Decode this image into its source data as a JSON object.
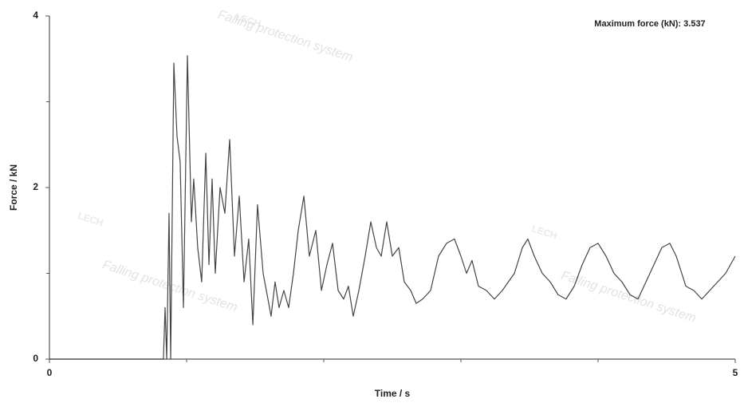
{
  "chart_data": {
    "type": "line",
    "annotation": "Maximum force (kN): 3.537",
    "xlabel": "Time / s",
    "ylabel": "Force / kN",
    "watermarks": [
      "LECH",
      "Falling protection system"
    ],
    "xlim": [
      0,
      5
    ],
    "ylim": [
      0,
      4
    ],
    "xticks": [
      0,
      5
    ],
    "yticks": [
      0,
      2,
      4
    ],
    "xminorticks": [
      1,
      2,
      3,
      4
    ],
    "yminorticks": [
      1,
      3
    ],
    "x": [
      0,
      0.802,
      0.831,
      0.843,
      0.855,
      0.872,
      0.884,
      0.907,
      0.93,
      0.953,
      0.977,
      1.006,
      1.035,
      1.052,
      1.081,
      1.11,
      1.14,
      1.163,
      1.186,
      1.209,
      1.244,
      1.279,
      1.314,
      1.349,
      1.384,
      1.419,
      1.453,
      1.483,
      1.517,
      1.558,
      1.593,
      1.616,
      1.645,
      1.674,
      1.709,
      1.744,
      1.779,
      1.814,
      1.855,
      1.895,
      1.942,
      1.983,
      2.023,
      2.064,
      2.105,
      2.145,
      2.18,
      2.215,
      2.256,
      2.302,
      2.343,
      2.384,
      2.419,
      2.459,
      2.5,
      2.547,
      2.587,
      2.634,
      2.674,
      2.721,
      2.779,
      2.837,
      2.895,
      2.953,
      3.0,
      3.041,
      3.081,
      3.128,
      3.186,
      3.244,
      3.302,
      3.39,
      3.448,
      3.488,
      3.535,
      3.593,
      3.651,
      3.709,
      3.767,
      3.826,
      3.884,
      3.942,
      4.0,
      4.058,
      4.116,
      4.174,
      4.233,
      4.291,
      4.378,
      4.465,
      4.523,
      4.57,
      4.64,
      4.698,
      4.756,
      4.843,
      4.93,
      5.0
    ],
    "series": [
      {
        "name": "Force",
        "color": "#444444",
        "values": [
          0,
          0,
          0,
          0.6,
          0,
          1.7,
          0,
          3.45,
          2.6,
          2.3,
          0.6,
          3.537,
          1.6,
          2.1,
          1.3,
          0.9,
          2.4,
          1.1,
          2.1,
          1.0,
          2.0,
          1.7,
          2.56,
          1.2,
          1.9,
          0.9,
          1.4,
          0.4,
          1.8,
          1.0,
          0.7,
          0.5,
          0.9,
          0.6,
          0.8,
          0.6,
          1.0,
          1.5,
          1.9,
          1.2,
          1.5,
          0.8,
          1.1,
          1.35,
          0.8,
          0.7,
          0.85,
          0.5,
          0.8,
          1.2,
          1.6,
          1.3,
          1.2,
          1.6,
          1.2,
          1.3,
          0.9,
          0.8,
          0.65,
          0.7,
          0.8,
          1.2,
          1.35,
          1.4,
          1.2,
          1.0,
          1.15,
          0.85,
          0.8,
          0.7,
          0.8,
          1.0,
          1.3,
          1.4,
          1.2,
          1.0,
          0.9,
          0.75,
          0.7,
          0.85,
          1.1,
          1.3,
          1.35,
          1.2,
          1.0,
          0.9,
          0.75,
          0.7,
          1.0,
          1.3,
          1.35,
          1.2,
          0.85,
          0.8,
          0.7,
          0.85,
          1.0,
          1.2
        ]
      }
    ]
  }
}
